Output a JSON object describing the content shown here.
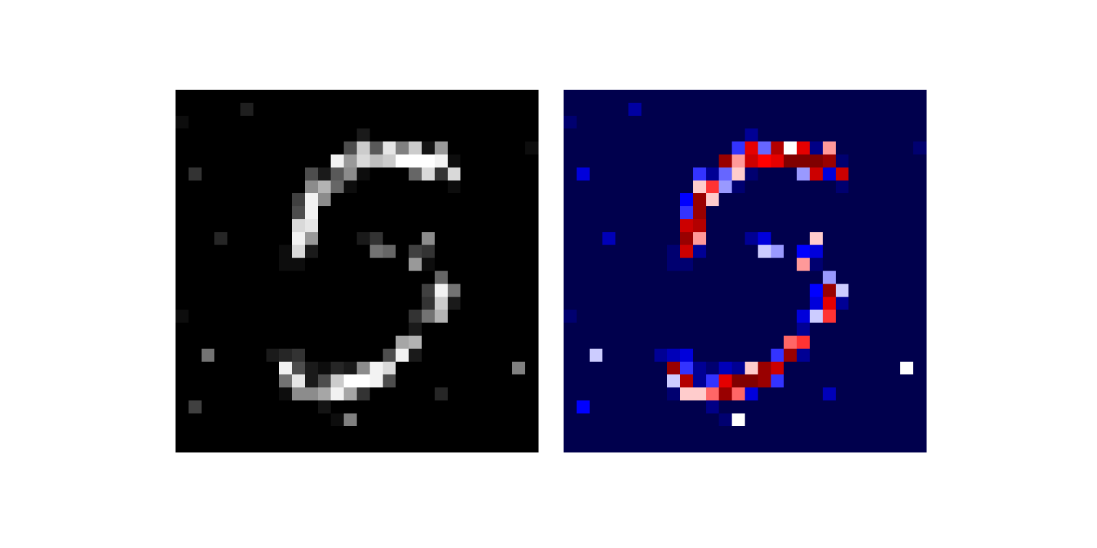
{
  "chart_data": {
    "type": "heatmap",
    "cmaps": [
      "gray",
      "seismic"
    ],
    "clim": [
      0,
      1
    ],
    "values": [
      [
        0,
        0,
        0,
        0,
        0,
        0,
        0,
        0,
        0,
        0,
        0,
        0,
        0,
        0,
        0,
        0,
        0,
        0,
        0,
        0,
        0,
        0,
        0,
        0,
        0,
        0,
        0,
        0
      ],
      [
        0,
        0,
        0,
        0,
        0,
        0.12,
        0,
        0,
        0,
        0,
        0,
        0,
        0,
        0,
        0,
        0,
        0,
        0,
        0,
        0,
        0,
        0,
        0,
        0,
        0,
        0,
        0,
        0
      ],
      [
        0.05,
        0,
        0,
        0,
        0,
        0,
        0,
        0,
        0,
        0,
        0,
        0,
        0,
        0,
        0,
        0,
        0,
        0,
        0,
        0,
        0,
        0,
        0,
        0,
        0,
        0,
        0,
        0
      ],
      [
        0,
        0,
        0,
        0,
        0,
        0,
        0,
        0,
        0,
        0,
        0,
        0,
        0,
        0,
        0.1,
        0,
        0,
        0,
        0,
        0,
        0,
        0,
        0,
        0,
        0,
        0,
        0,
        0
      ],
      [
        0,
        0,
        0,
        0,
        0,
        0,
        0,
        0,
        0,
        0,
        0,
        0,
        0,
        0.3,
        0.8,
        0.35,
        0.9,
        0.5,
        0.8,
        0.08,
        0.6,
        0,
        0,
        0,
        0,
        0,
        0,
        0.05
      ],
      [
        0,
        0,
        0,
        0,
        0,
        0,
        0,
        0,
        0,
        0,
        0,
        0,
        0.95,
        0.6,
        0.85,
        0.75,
        0.8,
        1,
        1,
        1,
        0.95,
        0.05,
        0,
        0,
        0,
        0,
        0,
        0
      ],
      [
        0,
        0.2,
        0,
        0,
        0,
        0,
        0,
        0,
        0,
        0,
        0.3,
        0.1,
        0.35,
        0.55,
        0.05,
        0,
        0,
        0,
        0.4,
        0.85,
        0.2,
        0.85,
        0,
        0,
        0,
        0,
        0,
        0
      ],
      [
        0,
        0,
        0,
        0,
        0,
        0,
        0,
        0,
        0,
        0,
        0.55,
        0.7,
        0.4,
        0.05,
        0,
        0,
        0,
        0,
        0,
        0,
        0,
        0.05,
        0,
        0,
        0,
        0,
        0,
        0
      ],
      [
        0,
        0,
        0,
        0,
        0,
        0,
        0,
        0,
        0,
        0.25,
        0.95,
        0.55,
        0,
        0,
        0,
        0,
        0,
        0,
        0,
        0,
        0,
        0,
        0,
        0,
        0,
        0,
        0,
        0
      ],
      [
        0,
        0,
        0,
        0,
        0,
        0,
        0,
        0,
        0,
        0.3,
        0.95,
        0,
        0,
        0,
        0,
        0,
        0,
        0,
        0,
        0,
        0,
        0,
        0,
        0,
        0,
        0,
        0,
        0
      ],
      [
        0,
        0,
        0,
        0,
        0,
        0,
        0,
        0,
        0,
        0.85,
        0.9,
        0,
        0,
        0,
        0,
        0,
        0,
        0,
        0,
        0,
        0,
        0,
        0,
        0,
        0,
        0,
        0,
        0
      ],
      [
        0,
        0,
        0,
        0.15,
        0,
        0,
        0,
        0,
        0,
        0.95,
        0.6,
        0,
        0,
        0,
        0.1,
        0.2,
        0,
        0,
        0,
        0.55,
        0,
        0,
        0,
        0,
        0,
        0,
        0,
        0
      ],
      [
        0,
        0,
        0,
        0,
        0,
        0,
        0,
        0,
        0.05,
        0.85,
        0.1,
        0,
        0,
        0,
        0,
        0.45,
        0.4,
        0,
        0.25,
        0.2,
        0,
        0,
        0,
        0,
        0,
        0,
        0,
        0
      ],
      [
        0,
        0,
        0,
        0,
        0,
        0,
        0,
        0,
        0.05,
        0.05,
        0,
        0,
        0,
        0,
        0,
        0,
        0,
        0,
        0.6,
        0.05,
        0,
        0,
        0,
        0,
        0,
        0,
        0,
        0
      ],
      [
        0,
        0,
        0,
        0,
        0,
        0,
        0,
        0,
        0,
        0,
        0,
        0,
        0,
        0,
        0,
        0,
        0,
        0,
        0,
        0,
        0.4,
        0,
        0,
        0,
        0,
        0,
        0,
        0
      ],
      [
        0,
        0,
        0,
        0,
        0,
        0,
        0,
        0,
        0,
        0,
        0,
        0,
        0,
        0,
        0,
        0,
        0,
        0,
        0,
        0.25,
        0.95,
        0.45,
        0,
        0,
        0,
        0,
        0,
        0
      ],
      [
        0,
        0,
        0,
        0,
        0,
        0,
        0,
        0,
        0,
        0,
        0,
        0,
        0,
        0,
        0,
        0,
        0,
        0,
        0,
        0.2,
        0.8,
        0.1,
        0,
        0,
        0,
        0,
        0,
        0
      ],
      [
        0.05,
        0,
        0,
        0,
        0,
        0,
        0,
        0,
        0,
        0,
        0,
        0,
        0,
        0,
        0,
        0,
        0,
        0,
        0.2,
        0.45,
        0.7,
        0,
        0,
        0,
        0,
        0,
        0,
        0
      ],
      [
        0,
        0,
        0,
        0,
        0,
        0,
        0,
        0,
        0,
        0,
        0,
        0,
        0,
        0,
        0,
        0,
        0,
        0,
        0.1,
        0,
        0,
        0,
        0,
        0,
        0,
        0,
        0,
        0
      ],
      [
        0,
        0,
        0,
        0,
        0,
        0,
        0,
        0,
        0,
        0,
        0,
        0,
        0,
        0,
        0,
        0,
        0,
        0.65,
        0.7,
        0,
        0,
        0,
        0,
        0,
        0,
        0,
        0,
        0
      ],
      [
        0,
        0,
        0.45,
        0,
        0,
        0,
        0,
        0.1,
        0.15,
        0.2,
        0,
        0,
        0,
        0,
        0,
        0,
        0.3,
        0.95,
        0.1,
        0,
        0,
        0,
        0,
        0,
        0,
        0,
        0,
        0
      ],
      [
        0,
        0,
        0,
        0,
        0,
        0,
        0,
        0,
        0.95,
        0.3,
        0.1,
        0.05,
        0.15,
        0.1,
        0.55,
        0.95,
        0.85,
        0,
        0,
        0,
        0,
        0,
        0,
        0,
        0,
        0,
        0.5,
        0
      ],
      [
        0,
        0,
        0,
        0,
        0,
        0,
        0,
        0,
        0.45,
        0.9,
        0.1,
        0.3,
        0.8,
        1,
        1,
        0.95,
        0.3,
        0,
        0,
        0,
        0,
        0,
        0,
        0,
        0,
        0,
        0,
        0
      ],
      [
        0,
        0,
        0,
        0,
        0,
        0,
        0,
        0,
        0.05,
        0.55,
        0.55,
        0.65,
        0.95,
        0.65,
        0.2,
        0,
        0,
        0,
        0,
        0,
        0.15,
        0,
        0,
        0,
        0,
        0,
        0,
        0
      ],
      [
        0,
        0.25,
        0,
        0,
        0,
        0,
        0,
        0,
        0,
        0,
        0,
        0.08,
        0,
        0,
        0,
        0,
        0,
        0,
        0,
        0,
        0,
        0,
        0,
        0,
        0,
        0,
        0,
        0
      ],
      [
        0,
        0,
        0,
        0,
        0,
        0,
        0,
        0,
        0,
        0,
        0,
        0,
        0.05,
        0.5,
        0,
        0,
        0,
        0,
        0,
        0,
        0,
        0,
        0,
        0,
        0,
        0,
        0,
        0
      ],
      [
        0,
        0,
        0,
        0,
        0,
        0,
        0,
        0,
        0,
        0,
        0,
        0,
        0,
        0,
        0,
        0,
        0,
        0,
        0,
        0,
        0,
        0,
        0,
        0,
        0,
        0,
        0,
        0
      ],
      [
        0,
        0,
        0,
        0,
        0,
        0,
        0,
        0,
        0,
        0,
        0,
        0,
        0,
        0,
        0,
        0,
        0,
        0,
        0,
        0,
        0,
        0,
        0,
        0,
        0,
        0,
        0,
        0
      ]
    ]
  }
}
